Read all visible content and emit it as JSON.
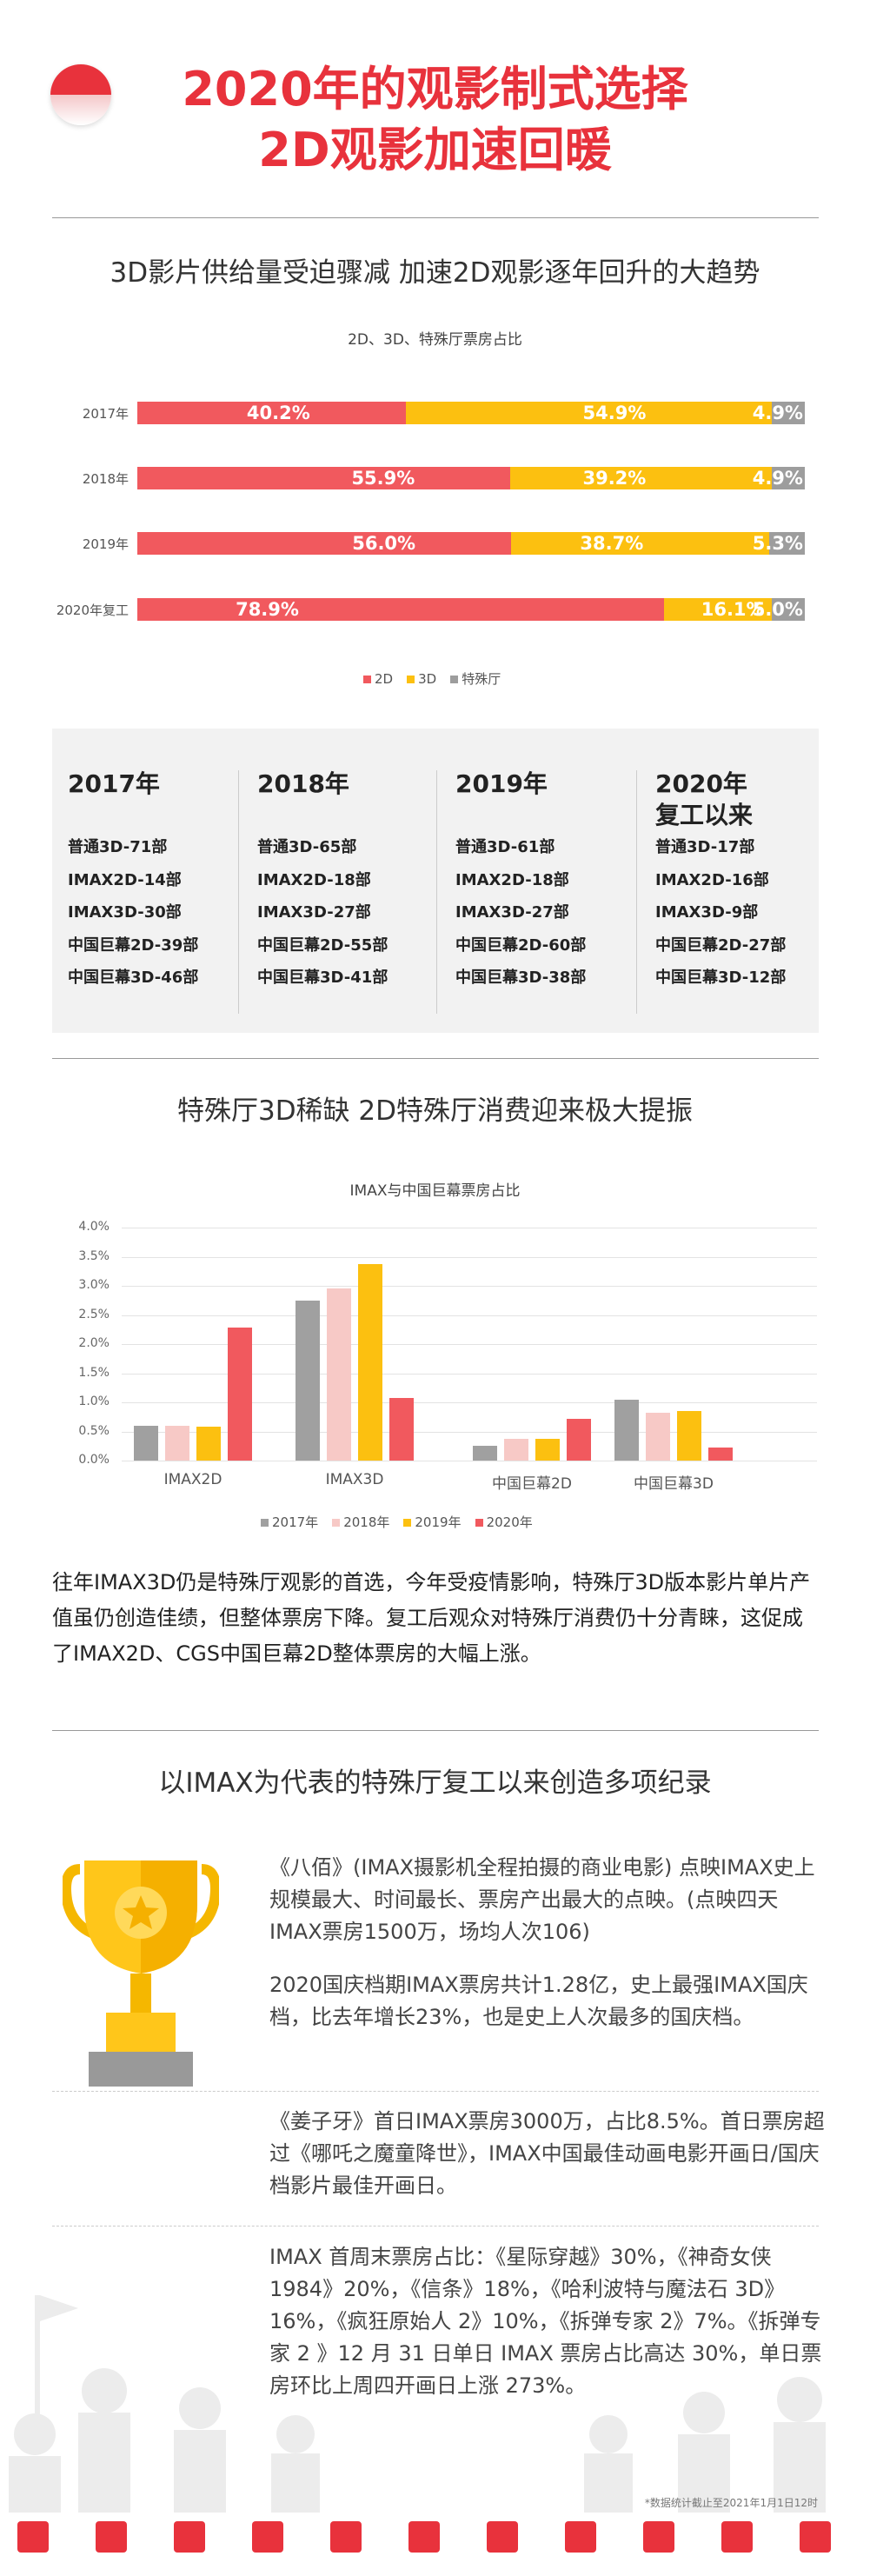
{
  "header": {
    "title_line1": "2020年的观影制式选择",
    "title_line2": "2D观影加速回暖"
  },
  "section1": {
    "title": "3D影片供给量受迫骤减 加速2D观影逐年回升的大趋势",
    "chart_title": "2D、3D、特殊厅票房占比"
  },
  "colors": {
    "accent": "#e8323c",
    "series_2d": "#f1595e",
    "series_3d": "#fcc010",
    "series_special": "#9d9d9d"
  },
  "chart_data": [
    {
      "type": "bar",
      "stacked": true,
      "orientation": "horizontal",
      "title": "2D、3D、特殊厅票房占比",
      "categories": [
        "2017年",
        "2018年",
        "2019年",
        "2020年复工"
      ],
      "series": [
        {
          "name": "2D",
          "values": [
            40.2,
            55.9,
            56.0,
            78.9
          ],
          "labels": [
            "40.2%",
            "55.9%",
            "56.0%",
            "78.9%"
          ]
        },
        {
          "name": "3D",
          "values": [
            54.9,
            39.2,
            38.7,
            16.1
          ],
          "labels": [
            "54.9%",
            "39.2%",
            "38.7%",
            "16.1%"
          ]
        },
        {
          "name": "特殊厅",
          "values": [
            4.9,
            4.9,
            5.3,
            5.0
          ],
          "labels": [
            "4.9%",
            "4.9%",
            "5.3%",
            "5.0%"
          ]
        }
      ],
      "legend_position": "bottom"
    },
    {
      "type": "bar",
      "title": "IMAX与中国巨幕票房占比",
      "categories": [
        "IMAX2D",
        "IMAX3D",
        "中国巨幕2D",
        "中国巨幕3D"
      ],
      "series": [
        {
          "name": "2017年",
          "values": [
            0.6,
            2.75,
            0.25,
            1.05
          ]
        },
        {
          "name": "2018年",
          "values": [
            0.6,
            2.95,
            0.38,
            0.82
          ]
        },
        {
          "name": "2019年",
          "values": [
            0.58,
            3.38,
            0.38,
            0.85
          ]
        },
        {
          "name": "2020年",
          "values": [
            2.28,
            1.08,
            0.72,
            0.22
          ]
        }
      ],
      "y_ticks": [
        "0.0%",
        "0.5%",
        "1.0%",
        "1.5%",
        "2.0%",
        "2.5%",
        "3.0%",
        "3.5%",
        "4.0%"
      ],
      "ylim": [
        0,
        4.0
      ],
      "legend_position": "bottom",
      "grid": true
    }
  ],
  "supply": {
    "columns": [
      {
        "year": "2017年",
        "items": [
          "普通3D-71部",
          "IMAX2D-14部",
          "IMAX3D-30部",
          "中国巨幕2D-39部",
          "中国巨幕3D-46部"
        ]
      },
      {
        "year": "2018年",
        "items": [
          "普通3D-65部",
          "IMAX2D-18部",
          "IMAX3D-27部",
          "中国巨幕2D-55部",
          "中国巨幕3D-41部"
        ]
      },
      {
        "year": "2019年",
        "items": [
          "普通3D-61部",
          "IMAX2D-18部",
          "IMAX3D-27部",
          "中国巨幕2D-60部",
          "中国巨幕3D-38部"
        ]
      },
      {
        "year": "2020年\n复工以来",
        "items": [
          "普通3D-17部",
          "IMAX2D-16部",
          "IMAX3D-9部",
          "中国巨幕2D-27部",
          "中国巨幕3D-12部"
        ]
      }
    ]
  },
  "section2": {
    "title": "特殊厅3D稀缺 2D特殊厅消费迎来极大提振",
    "paragraph": "往年IMAX3D仍是特殊厅观影的首选，今年受疫情影响，特殊厅3D版本影片单片产值虽仍创造佳绩，但整体票房下降。复工后观众对特殊厅消费仍十分青睐，这促成了IMAX2D、CGS中国巨幕2D整体票房的大幅上涨。"
  },
  "section3": {
    "title": "以IMAX为代表的特殊厅复工以来创造多项纪录",
    "records": [
      "《八佰》(IMAX摄影机全程拍摄的商业电影) 点映IMAX史上规模最大、时间最长、票房产出最大的点映。(点映四天IMAX票房1500万，场均人次106)",
      "2020国庆档期IMAX票房共计1.28亿，史上最强IMAX国庆档，比去年增长23%，也是史上人次最多的国庆档。",
      "《姜子牙》首日IMAX票房3000万，占比8.5%。首日票房超过《哪吒之魔童降世》，IMAX中国最佳动画电影开画日/国庆档影片最佳开画日。",
      "IMAX 首周末票房占比：《星际穿越》30%，《神奇女侠 1984》20%，《信条》18%，《哈利波特与魔法石 3D》16%，《疯狂原始人 2》10%，《拆弹专家 2》7%。《拆弹专家 2 》12 月 31 日单日 IMAX 票房占比高达 30%，单日票房环比上周四开画日上涨 273%。"
    ],
    "note": "*数据统计截止至2021年1月1日12时"
  }
}
